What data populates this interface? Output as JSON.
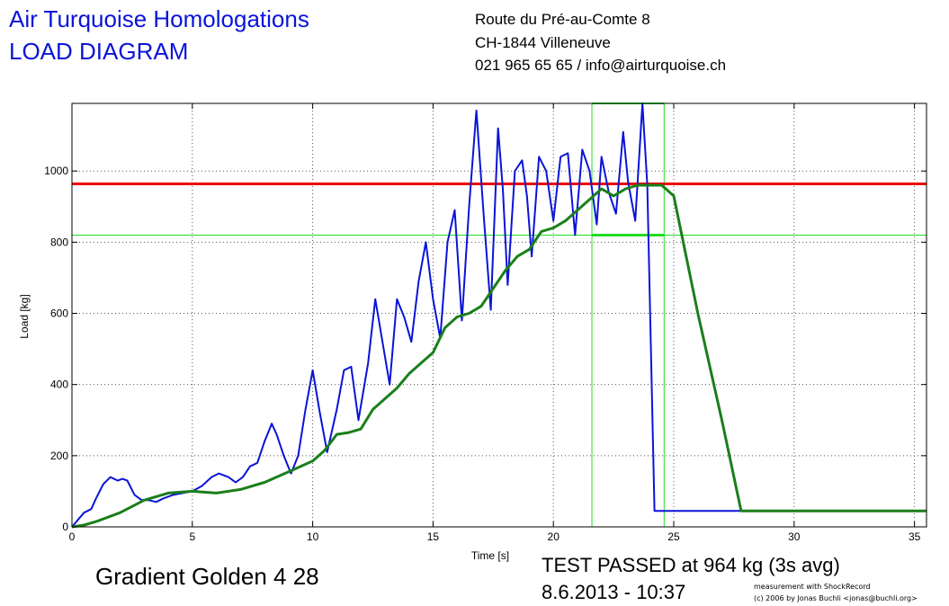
{
  "header": {
    "title_line1": "Air Turquoise Homologations",
    "title_line2": "LOAD DIAGRAM",
    "address_line1": "Route du Pré-au-Comte 8",
    "address_line2": "CH-1844 Villeneuve",
    "address_line3": "021 965 65 65 / info@airturquoise.ch"
  },
  "footer": {
    "subject": "Gradient Golden 4 28",
    "result": "TEST PASSED at 964 kg (3s avg)",
    "datetime": "8.6.2013 - 10:37",
    "credit_line1": "measurement with ShockRecord",
    "credit_line2": "(c) 2006 by Jonas Buchli <jonas@buchli.org>"
  },
  "chart_data": {
    "type": "line",
    "xlabel": "Time [s]",
    "ylabel": "Load [kg]",
    "xlim": [
      0,
      35.5
    ],
    "ylim": [
      0,
      1190
    ],
    "xticks": [
      0,
      5,
      10,
      15,
      20,
      25,
      30,
      35
    ],
    "yticks": [
      0,
      200,
      400,
      600,
      800,
      1000
    ],
    "grid": true,
    "colors": {
      "raw": "#0a14d8",
      "avg": "#1a7f1a",
      "limit": "#ee0000",
      "window": "#22dd22"
    },
    "series": [
      {
        "key": "raw",
        "x": [
          0,
          0.5,
          0.8,
          1.0,
          1.3,
          1.6,
          1.9,
          2.1,
          2.3,
          2.6,
          2.9,
          3.2,
          3.5,
          3.8,
          4.2,
          4.6,
          5.0,
          5.4,
          5.8,
          6.1,
          6.5,
          6.8,
          7.1,
          7.4,
          7.7,
          8.0,
          8.3,
          8.5,
          8.8,
          9.1,
          9.4,
          9.7,
          10.0,
          10.3,
          10.6,
          11.0,
          11.3,
          11.6,
          11.9,
          12.3,
          12.6,
          12.9,
          13.2,
          13.5,
          13.8,
          14.1,
          14.4,
          14.7,
          15.0,
          15.3,
          15.6,
          15.9,
          16.2,
          16.5,
          16.8,
          17.1,
          17.4,
          17.7,
          17.9,
          18.1,
          18.4,
          18.7,
          18.9,
          19.1,
          19.4,
          19.7,
          20.0,
          20.3,
          20.6,
          20.9,
          21.2,
          21.5,
          21.8,
          22.0,
          22.3,
          22.6,
          22.9,
          23.1,
          23.4,
          23.7,
          23.9,
          24.2,
          24.4,
          24.6,
          24.75,
          24.9,
          25.5,
          27.0,
          30.0,
          35.5
        ],
        "y": [
          0,
          40,
          50,
          80,
          120,
          140,
          130,
          135,
          130,
          90,
          75,
          75,
          70,
          80,
          90,
          95,
          100,
          115,
          140,
          150,
          140,
          125,
          140,
          170,
          180,
          240,
          290,
          260,
          200,
          150,
          200,
          330,
          440,
          320,
          210,
          330,
          440,
          450,
          300,
          460,
          640,
          520,
          400,
          640,
          590,
          520,
          690,
          800,
          640,
          530,
          800,
          890,
          580,
          900,
          1170,
          880,
          610,
          1120,
          950,
          680,
          1000,
          1030,
          930,
          760,
          1040,
          1000,
          860,
          1040,
          1050,
          820,
          1060,
          1000,
          850,
          1040,
          940,
          880,
          1110,
          970,
          860,
          1190,
          960,
          45,
          45,
          45,
          45,
          45,
          45,
          45,
          45,
          45
        ],
        "name": ""
      },
      {
        "key": "avg",
        "x": [
          0,
          0.5,
          1.0,
          2.0,
          3.0,
          4.0,
          5.0,
          6.0,
          7.0,
          8.0,
          9.0,
          10.0,
          10.5,
          11.0,
          11.5,
          12.0,
          12.5,
          13.0,
          13.5,
          14.0,
          14.5,
          15.0,
          15.5,
          16.0,
          16.5,
          17.0,
          17.5,
          18.0,
          18.5,
          19.0,
          19.5,
          20.0,
          20.5,
          21.0,
          21.5,
          22.0,
          22.5,
          23.0,
          23.5,
          24.0,
          24.5,
          25.0,
          26.0,
          27.0,
          27.8,
          30.0,
          35.5
        ],
        "y": [
          0,
          5,
          15,
          40,
          75,
          95,
          100,
          95,
          105,
          125,
          155,
          185,
          215,
          260,
          265,
          275,
          330,
          360,
          390,
          430,
          460,
          490,
          560,
          590,
          600,
          620,
          670,
          720,
          760,
          780,
          830,
          840,
          860,
          890,
          920,
          950,
          930,
          950,
          960,
          960,
          960,
          930,
          600,
          300,
          45,
          45,
          45
        ],
        "name": ""
      }
    ],
    "limit_line": 964,
    "window": {
      "x_start": 21.6,
      "x_end": 24.6,
      "y_low": 820,
      "y_high": 1190
    }
  }
}
